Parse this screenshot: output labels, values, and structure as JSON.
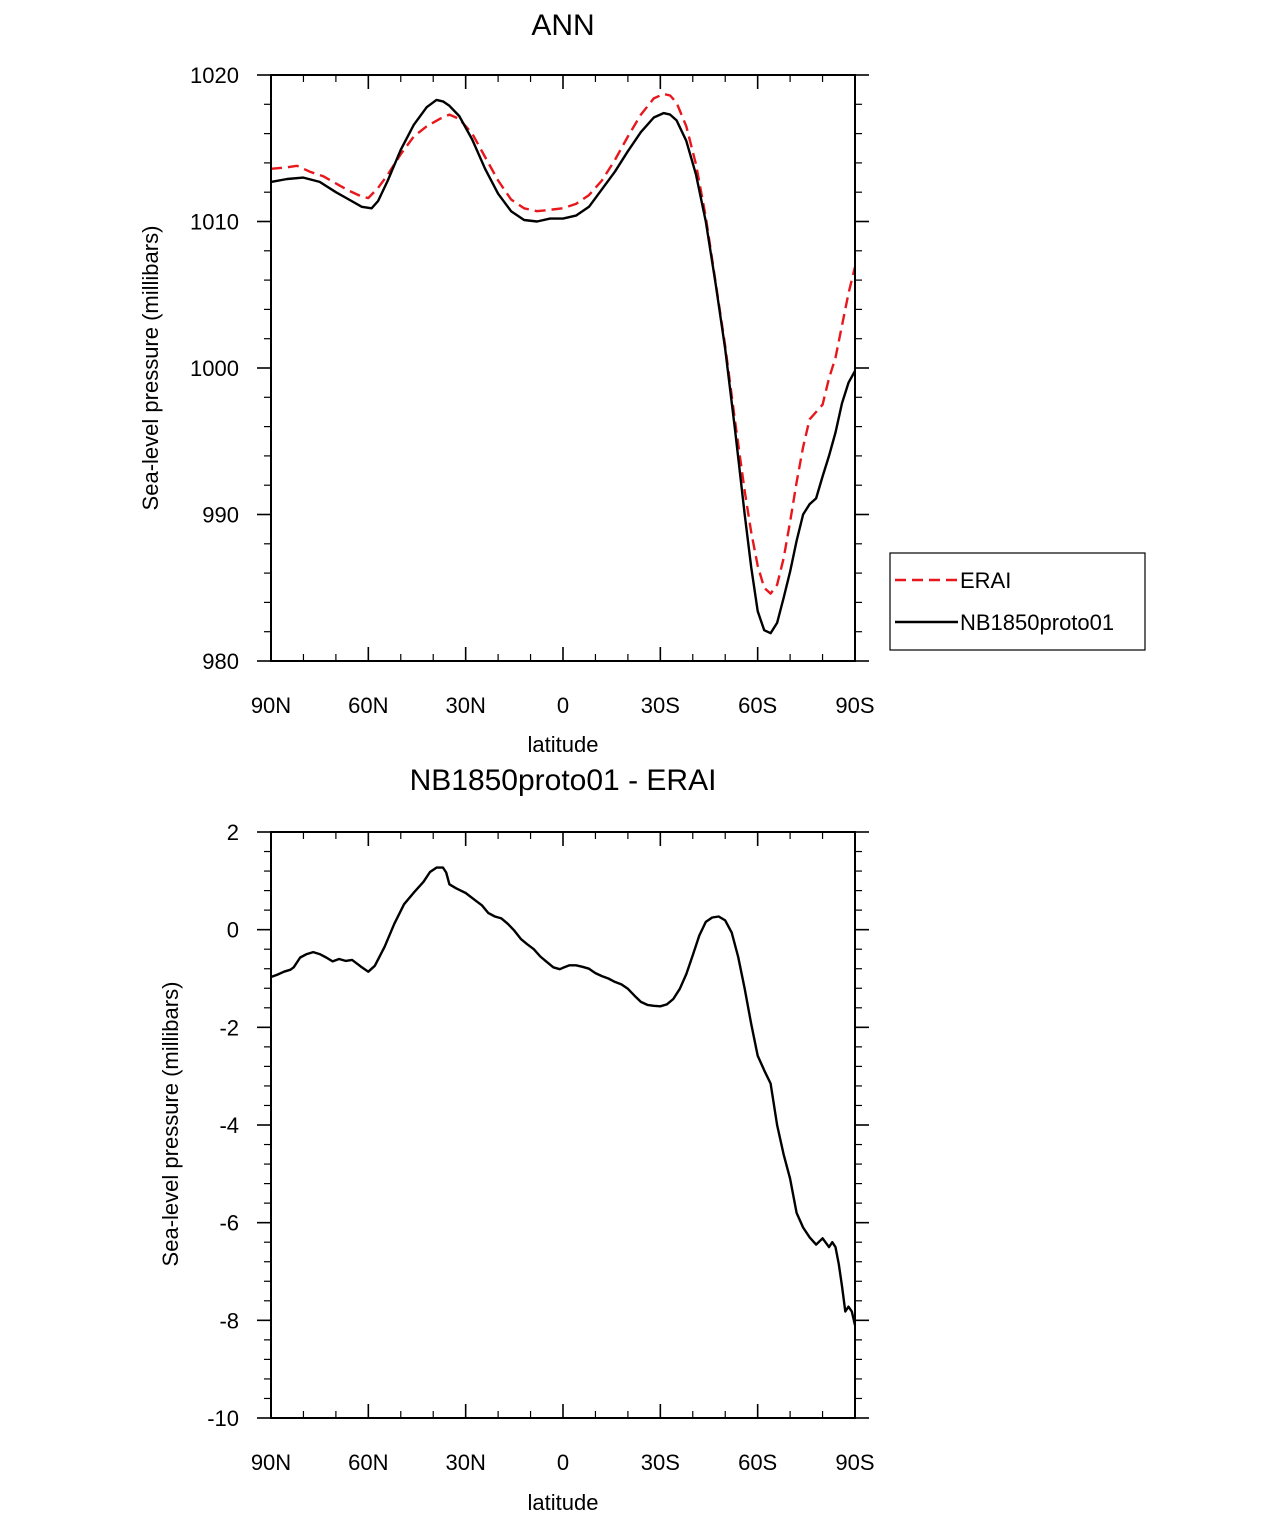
{
  "chart_data": [
    {
      "type": "line",
      "title": "ANN",
      "xlabel": "latitude",
      "ylabel": "Sea-level pressure (millibars)",
      "xlim": [
        90,
        -90
      ],
      "ylim": [
        980,
        1020
      ],
      "x_tick_values": [
        90,
        60,
        30,
        0,
        -30,
        -60,
        -90
      ],
      "x_tick_labels": [
        "90N",
        "60N",
        "30N",
        "0",
        "30S",
        "60S",
        "90S"
      ],
      "y_tick_values": [
        980,
        990,
        1000,
        1010,
        1020
      ],
      "y_tick_labels": [
        "980",
        "990",
        "1000",
        "1010",
        "1020"
      ],
      "legend": {
        "position": "right",
        "entries": [
          "ERAI",
          "NB1850proto01"
        ]
      },
      "series": [
        {
          "name": "ERAI",
          "color": "#e8171c",
          "dash": "dashed",
          "x": [
            90,
            85,
            82,
            78,
            74,
            70,
            66,
            62,
            60,
            57,
            54,
            50,
            46,
            42,
            38,
            35,
            32,
            28,
            24,
            20,
            16,
            12,
            8,
            4,
            0,
            -4,
            -8,
            -12,
            -16,
            -20,
            -24,
            -28,
            -31,
            -33,
            -35,
            -38,
            -41,
            -44,
            -47,
            -50,
            -53,
            -56,
            -58,
            -60,
            -62,
            -64,
            -66,
            -68,
            -70,
            -72,
            -74,
            -76,
            -78,
            -80,
            -82,
            -84,
            -86,
            -88,
            -90
          ],
          "values": [
            1013.6,
            1013.7,
            1013.8,
            1013.4,
            1013.1,
            1012.6,
            1012.1,
            1011.7,
            1011.6,
            1012.3,
            1013.2,
            1014.6,
            1015.8,
            1016.5,
            1017.0,
            1017.3,
            1017.0,
            1016.0,
            1014.4,
            1012.8,
            1011.5,
            1010.9,
            1010.7,
            1010.8,
            1010.9,
            1011.2,
            1011.8,
            1012.8,
            1014.2,
            1015.8,
            1017.3,
            1018.4,
            1018.7,
            1018.6,
            1018.1,
            1016.5,
            1013.9,
            1010.3,
            1005.9,
            1001.5,
            996.4,
            991.6,
            988.8,
            986.5,
            985.0,
            984.6,
            985.2,
            987.0,
            989.5,
            992.2,
            994.6,
            996.5,
            997.0,
            997.5,
            999.3,
            1000.7,
            1002.9,
            1005.1,
            1006.9
          ]
        },
        {
          "name": "NB1850proto01",
          "color": "#000000",
          "dash": "solid",
          "x": [
            90,
            85,
            80,
            75,
            70,
            66,
            62,
            59,
            57,
            54,
            50,
            46,
            42,
            39,
            37,
            35,
            32,
            28,
            24,
            20,
            16,
            12,
            8,
            4,
            0,
            -4,
            -8,
            -12,
            -16,
            -20,
            -24,
            -28,
            -31,
            -33,
            -35,
            -38,
            -41,
            -44,
            -47,
            -50,
            -53,
            -56,
            -58,
            -60,
            -62,
            -64,
            -66,
            -68,
            -70,
            -72,
            -74,
            -76,
            -78,
            -80,
            -82,
            -84,
            -86,
            -88,
            -90
          ],
          "values": [
            1012.7,
            1012.9,
            1013.0,
            1012.7,
            1012.0,
            1011.5,
            1011.0,
            1010.9,
            1011.4,
            1012.8,
            1014.9,
            1016.6,
            1017.8,
            1018.3,
            1018.2,
            1017.9,
            1017.2,
            1015.6,
            1013.6,
            1011.9,
            1010.7,
            1010.1,
            1010.0,
            1010.2,
            1010.2,
            1010.4,
            1011.0,
            1012.2,
            1013.4,
            1014.8,
            1016.1,
            1017.1,
            1017.4,
            1017.3,
            1016.9,
            1015.5,
            1013.2,
            1010.0,
            1005.8,
            1001.3,
            995.8,
            990.0,
            986.4,
            983.4,
            982.1,
            981.9,
            982.6,
            984.3,
            986.1,
            988.2,
            990.0,
            990.7,
            991.1,
            992.6,
            994.0,
            995.6,
            997.6,
            999.0,
            999.8
          ]
        }
      ]
    },
    {
      "type": "line",
      "title": "NB1850proto01 - ERAI",
      "xlabel": "latitude",
      "ylabel": "Sea-level pressure (millibars)",
      "xlim": [
        90,
        -90
      ],
      "ylim": [
        -10,
        2
      ],
      "x_tick_values": [
        90,
        60,
        30,
        0,
        -30,
        -60,
        -90
      ],
      "x_tick_labels": [
        "90N",
        "60N",
        "30N",
        "0",
        "30S",
        "60S",
        "90S"
      ],
      "y_tick_values": [
        -10,
        -8,
        -6,
        -4,
        -2,
        0,
        2
      ],
      "y_tick_labels": [
        "-10",
        "-8",
        "-6",
        "-4",
        "-2",
        "0",
        "2"
      ],
      "series": [
        {
          "name": "NB1850proto01 - ERAI",
          "color": "#000000",
          "dash": "solid",
          "x": [
            90,
            88,
            86,
            84,
            83,
            81,
            79,
            77,
            75,
            73,
            71,
            69,
            67,
            65,
            63,
            62,
            60,
            58,
            55,
            52,
            49,
            46,
            43,
            41,
            39,
            37,
            36,
            35,
            33,
            30,
            27,
            25,
            23,
            21,
            19,
            17,
            15,
            13,
            11,
            9,
            7,
            5,
            3,
            1,
            0,
            -2,
            -4,
            -6,
            -8,
            -10,
            -12,
            -14,
            -16,
            -18,
            -20,
            -22,
            -24,
            -26,
            -28,
            -30,
            -32,
            -34,
            -36,
            -38,
            -40,
            -42,
            -44,
            -46,
            -48,
            -50,
            -52,
            -54,
            -56,
            -58,
            -60,
            -62,
            -64,
            -66,
            -68,
            -70,
            -72,
            -74,
            -76,
            -78,
            -80,
            -82,
            -83,
            -84,
            -85,
            -86,
            -87,
            -88,
            -89,
            -90
          ],
          "values": [
            -0.97,
            -0.92,
            -0.86,
            -0.82,
            -0.77,
            -0.57,
            -0.5,
            -0.46,
            -0.5,
            -0.57,
            -0.65,
            -0.6,
            -0.64,
            -0.62,
            -0.72,
            -0.77,
            -0.86,
            -0.74,
            -0.35,
            0.12,
            0.52,
            0.76,
            0.98,
            1.18,
            1.27,
            1.27,
            1.17,
            0.93,
            0.85,
            0.75,
            0.6,
            0.5,
            0.34,
            0.27,
            0.23,
            0.12,
            -0.02,
            -0.19,
            -0.3,
            -0.4,
            -0.55,
            -0.66,
            -0.77,
            -0.81,
            -0.78,
            -0.73,
            -0.73,
            -0.76,
            -0.8,
            -0.89,
            -0.95,
            -1.0,
            -1.07,
            -1.12,
            -1.21,
            -1.35,
            -1.48,
            -1.54,
            -1.56,
            -1.57,
            -1.53,
            -1.42,
            -1.21,
            -0.91,
            -0.52,
            -0.12,
            0.16,
            0.25,
            0.27,
            0.19,
            -0.06,
            -0.56,
            -1.21,
            -1.93,
            -2.58,
            -2.88,
            -3.15,
            -4.0,
            -4.6,
            -5.1,
            -5.8,
            -6.1,
            -6.3,
            -6.45,
            -6.32,
            -6.5,
            -6.4,
            -6.5,
            -6.85,
            -7.3,
            -7.82,
            -7.72,
            -7.82,
            -8.1
          ]
        }
      ]
    }
  ]
}
